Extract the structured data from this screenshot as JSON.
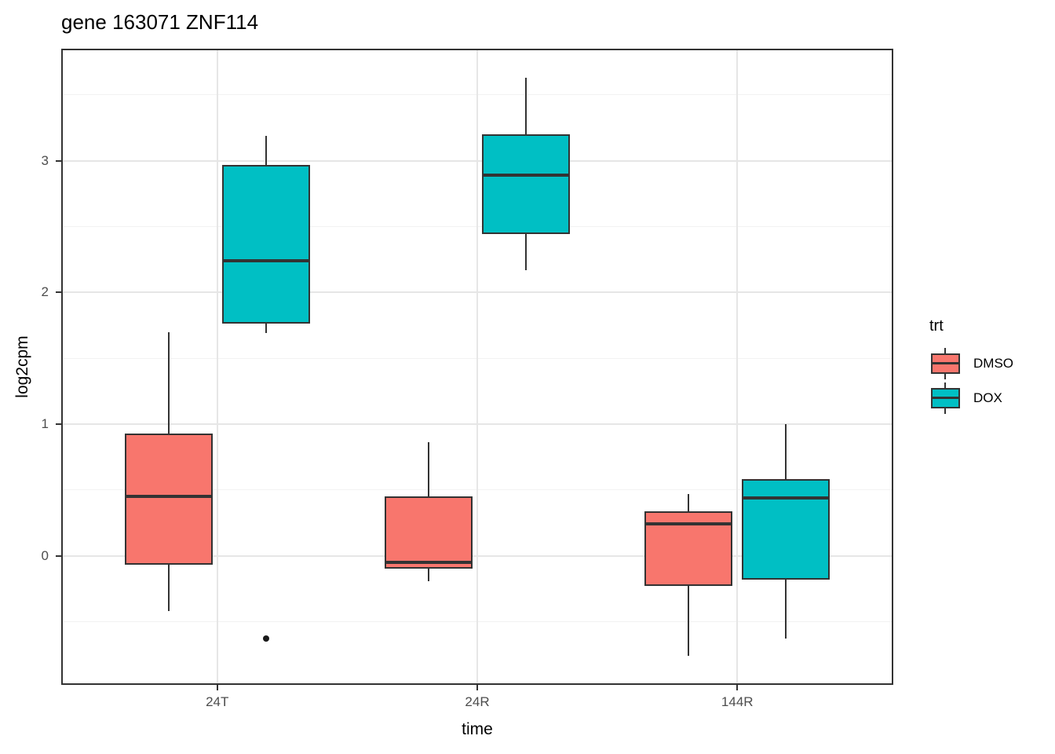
{
  "title": "gene 163071 ZNF114",
  "chart_data": {
    "type": "boxplot",
    "title": "gene 163071 ZNF114",
    "xlabel": "time",
    "ylabel": "log2cpm",
    "categories": [
      "24T",
      "24R",
      "144R"
    ],
    "yticks": [
      0,
      1,
      2,
      3
    ],
    "yticks_minor": [
      -0.5,
      0.5,
      1.5,
      2.5,
      3.5
    ],
    "ylim": [
      -0.98,
      3.85
    ],
    "grid": true,
    "legend": {
      "title": "trt",
      "position": "right"
    },
    "series": [
      {
        "name": "DMSO",
        "color": "#F8766D",
        "boxes": [
          {
            "category": "24T",
            "whisker_low": -0.42,
            "q1": -0.07,
            "median": 0.45,
            "q3": 0.93,
            "whisker_high": 1.7,
            "outliers": []
          },
          {
            "category": "24R",
            "whisker_low": -0.19,
            "q1": -0.1,
            "median": -0.05,
            "q3": 0.45,
            "whisker_high": 0.86,
            "outliers": []
          },
          {
            "category": "144R",
            "whisker_low": -0.76,
            "q1": -0.23,
            "median": 0.24,
            "q3": 0.34,
            "whisker_high": 0.47,
            "outliers": []
          }
        ]
      },
      {
        "name": "DOX",
        "color": "#00BFC4",
        "boxes": [
          {
            "category": "24T",
            "whisker_low": 1.69,
            "q1": 1.76,
            "median": 2.24,
            "q3": 2.97,
            "whisker_high": 3.19,
            "outliers": [
              -0.63
            ]
          },
          {
            "category": "24R",
            "whisker_low": 2.17,
            "q1": 2.44,
            "median": 2.89,
            "q3": 3.2,
            "whisker_high": 3.63,
            "outliers": []
          },
          {
            "category": "144R",
            "whisker_low": -0.63,
            "q1": -0.18,
            "median": 0.44,
            "q3": 0.58,
            "whisker_high": 1.0,
            "outliers": []
          }
        ]
      }
    ],
    "style": {
      "border_color": "#333333",
      "panel_border": "#333333",
      "grid_major": "#e6e6e6",
      "grid_minor": "#f2f2f2",
      "tick_label_color": "#4d4d4d",
      "text_color": "#000000",
      "outlier_color": "#1a1a1a",
      "background": "#ffffff"
    }
  }
}
